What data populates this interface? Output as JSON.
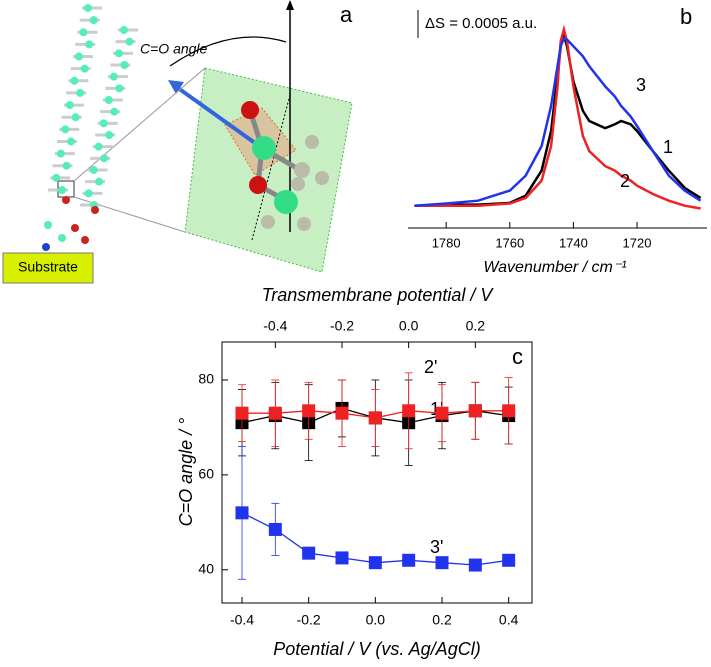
{
  "diagram": {
    "panel_label": "a",
    "angle_label": "C=O angle",
    "substrate_label": "Substrate"
  },
  "chart_data": [
    {
      "type": "line",
      "panel_label": "b",
      "x_label": "Wavenumber / cm⁻¹",
      "scale_bar": {
        "value": 0.0005,
        "label": "ΔS = 0.0005 a.u."
      },
      "x": [
        1790,
        1780,
        1770,
        1760,
        1755,
        1750,
        1747,
        1745,
        1744,
        1743,
        1742,
        1740,
        1737,
        1735,
        1730,
        1727,
        1725,
        1722,
        1720,
        1715,
        1710,
        1705,
        1700
      ],
      "series": [
        {
          "name": "1",
          "color": "#000000",
          "values": [
            0,
            2e-05,
            2e-05,
            5e-05,
            0.00018,
            0.00063,
            0.00134,
            0.00232,
            0.00286,
            0.00307,
            0.00286,
            0.00223,
            0.0017,
            0.00152,
            0.00139,
            0.00146,
            0.00152,
            0.00146,
            0.00134,
            0.00098,
            0.00063,
            0.00032,
            0.00014
          ]
        },
        {
          "name": "2",
          "color": "#ee2222",
          "values": [
            0,
            0,
            0,
            4e-05,
            0.00014,
            0.00045,
            0.00107,
            0.00214,
            0.00295,
            0.00316,
            0.00295,
            0.00214,
            0.00125,
            0.00098,
            0.00071,
            0.00063,
            0.00054,
            0.00045,
            0.00036,
            0.00021,
            9e-05,
            0,
            -5e-05
          ]
        },
        {
          "name": "3",
          "color": "#2233ee",
          "values": [
            0,
            4e-05,
            9e-05,
            0.00027,
            0.00054,
            0.00107,
            0.00179,
            0.0025,
            0.00286,
            0.003,
            0.00298,
            0.00286,
            0.00268,
            0.0025,
            0.00214,
            0.00196,
            0.00179,
            0.0016,
            0.00143,
            0.00098,
            0.00054,
            0.00027,
            9e-05
          ]
        }
      ],
      "xlim": [
        1792,
        1698
      ],
      "xticks": [
        1780,
        1760,
        1740,
        1720
      ],
      "ylim": [
        -0.0004,
        0.0036
      ]
    },
    {
      "type": "scatter",
      "panel_label": "c",
      "title": "Transmembrane potential / V",
      "x_label": "Potential / V (vs. Ag/AgCl)",
      "y_label": "C=O angle / °",
      "x": [
        -0.4,
        -0.3,
        -0.2,
        -0.1,
        0,
        0.1,
        0.2,
        0.3,
        0.4
      ],
      "series": [
        {
          "name": "1'",
          "color": "#000000",
          "values": [
            71,
            72.5,
            71,
            74,
            72,
            71,
            72.5,
            73.5,
            72.5
          ],
          "errors": [
            7,
            7,
            8,
            6,
            8,
            9,
            7,
            6,
            6
          ]
        },
        {
          "name": "2'",
          "color": "#ee2222",
          "values": [
            73,
            73,
            73.5,
            73,
            72,
            73.5,
            73,
            73.5,
            73.5
          ],
          "errors": [
            6,
            7,
            6,
            7,
            6,
            8,
            6,
            6,
            7
          ]
        },
        {
          "name": "3'",
          "color": "#2233ee",
          "values": [
            52,
            48.5,
            43.5,
            42.5,
            41.5,
            42,
            41.5,
            41,
            42
          ],
          "errors": [
            14,
            5.5,
            0.8,
            0.8,
            0.8,
            0.8,
            0.8,
            0.8,
            0.8
          ]
        }
      ],
      "xlim": [
        -0.46,
        0.47
      ],
      "xticks": [
        -0.4,
        -0.2,
        {
          "value": 0,
          "label": "0.0"
        },
        0.2,
        0.4
      ],
      "x2lim": [
        -0.56,
        0.37
      ],
      "x2ticks": [
        -0.4,
        -0.2,
        {
          "value": 0,
          "label": "0.0"
        },
        0.2
      ],
      "ylim": [
        33,
        88
      ],
      "yticks": [
        40,
        60,
        80
      ]
    }
  ]
}
